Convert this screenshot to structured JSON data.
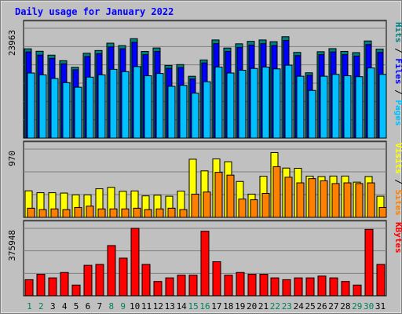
{
  "chart_data": {
    "title": "Daily usage for January 2022",
    "type": "bar",
    "days": [
      "1",
      "2",
      "3",
      "4",
      "5",
      "6",
      "7",
      "8",
      "9",
      "10",
      "11",
      "12",
      "13",
      "14",
      "15",
      "16",
      "17",
      "18",
      "19",
      "20",
      "21",
      "22",
      "23",
      "24",
      "25",
      "26",
      "27",
      "28",
      "29",
      "30",
      "31"
    ],
    "weekend_days": [
      1,
      2,
      8,
      9,
      15,
      16,
      22,
      23,
      29,
      30
    ],
    "panels": [
      {
        "id": "hits-files-pages",
        "max_label": "23963",
        "ymax": 23963,
        "legend": [
          "Pages",
          "Files",
          "Hits"
        ],
        "legend_colors": [
          "#00c0ff",
          "#0000ff",
          "#008080"
        ],
        "series": [
          {
            "name": "Hits",
            "color": "#008080",
            "values": [
              19480,
              18950,
              18100,
              16890,
              15450,
              18510,
              19110,
              20710,
              20180,
              21690,
              18900,
              19660,
              15850,
              16040,
              13490,
              17050,
              21410,
              19650,
              20570,
              21110,
              21410,
              21030,
              22120,
              18700,
              14250,
              18850,
              19520,
              18920,
              18650,
              21190,
              19420
            ]
          },
          {
            "name": "Files",
            "color": "#0000ff",
            "values": [
              18800,
              18100,
              17400,
              16200,
              14900,
              17800,
              18400,
              19900,
              19500,
              20900,
              18200,
              18900,
              15200,
              15400,
              12900,
              16400,
              20600,
              18900,
              19800,
              20300,
              20600,
              20200,
              21300,
              18000,
              13700,
              18200,
              18800,
              18200,
              17900,
              20400,
              18700
            ]
          },
          {
            "name": "Pages",
            "color": "#00c0ff",
            "values": [
              14200,
              13800,
              13000,
              12100,
              11100,
              13300,
              13800,
              15000,
              14500,
              15600,
              13600,
              14100,
              11300,
              11500,
              9800,
              12300,
              15500,
              14200,
              14800,
              15200,
              15500,
              15100,
              15900,
              13500,
              10400,
              13500,
              13900,
              13600,
              13400,
              15300,
              13900
            ]
          }
        ]
      },
      {
        "id": "visits-sites",
        "max_label": "970",
        "ymax": 970,
        "legend": [
          "Sites",
          "Visits"
        ],
        "legend_colors": [
          "#ff8000",
          "#ffff00"
        ],
        "series": [
          {
            "name": "Visits",
            "color": "#ffff00",
            "values": [
              377,
              350,
              350,
              345,
              320,
              320,
              406,
              426,
              370,
              375,
              305,
              315,
              300,
              373,
              826,
              660,
              830,
              790,
              510,
              330,
              584,
              920,
              700,
              697,
              586,
              580,
              587,
              587,
              500,
              580,
              300
            ]
          },
          {
            "name": "Sites",
            "color": "#ff8000",
            "values": [
              130,
              110,
              120,
              110,
              140,
              160,
              120,
              120,
              120,
              130,
              110,
              120,
              130,
              110,
              330,
              360,
              640,
              600,
              260,
              250,
              340,
              720,
              570,
              490,
              550,
              520,
              480,
              490,
              480,
              490,
              140
            ]
          }
        ]
      },
      {
        "id": "kbytes",
        "max_label": "375948",
        "ymax": 375948,
        "legend": [
          "KBytes"
        ],
        "legend_colors": [
          "#ff0000"
        ],
        "series": [
          {
            "name": "KBytes",
            "color": "#ff0000",
            "values": [
              90000,
              120000,
              100000,
              130000,
              60000,
              170000,
              175000,
              280000,
              210000,
              375948,
              175000,
              80000,
              100000,
              115000,
              115000,
              360000,
              190000,
              115000,
              130000,
              120000,
              120000,
              100000,
              90000,
              100000,
              100000,
              110000,
              100000,
              80000,
              60000,
              370000,
              175000
            ]
          }
        ]
      }
    ]
  },
  "colors": {
    "outer_bg": "#c0c0c0",
    "panel_bg": "#c0c0c0",
    "title_color": "#0000ff",
    "weekday_label": "#000000",
    "weekend_label": "#00805c",
    "gridline": "#808080"
  }
}
